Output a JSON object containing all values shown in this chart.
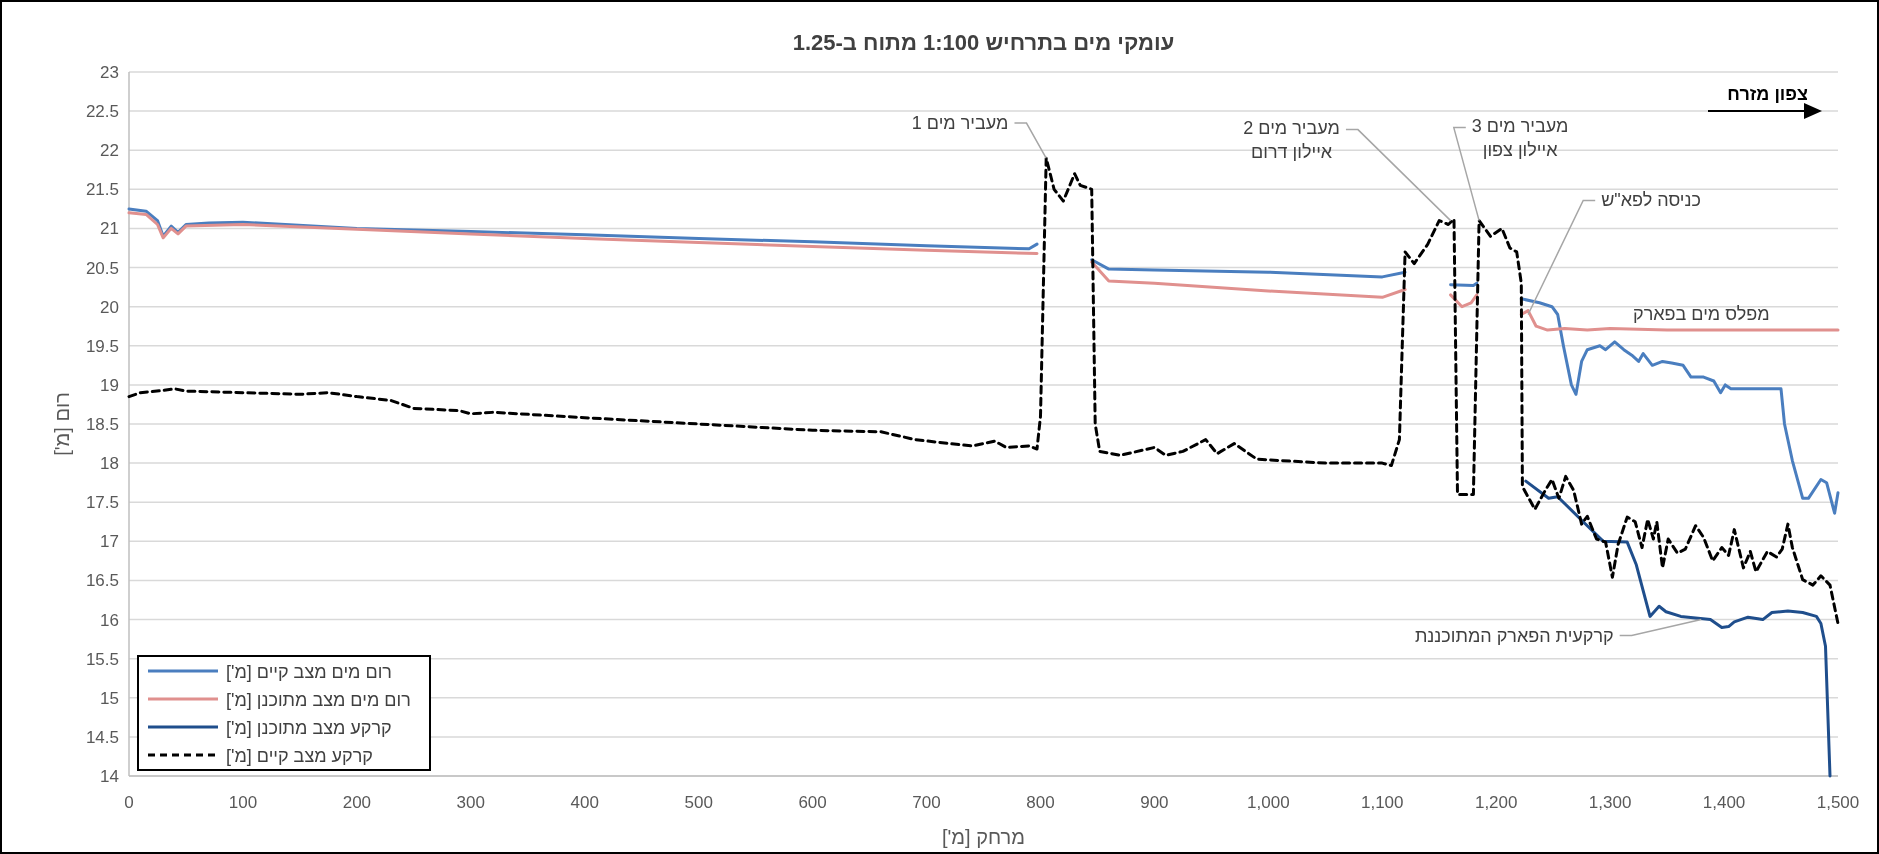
{
  "chart_data": {
    "type": "line",
    "title": "עומקי מים בתרחיש 1:100 מתוח ב-1.25",
    "xlabel": "מרחק [מ']",
    "ylabel": "רום [מ']",
    "xlim": [
      0,
      1500
    ],
    "ylim": [
      14,
      23
    ],
    "xticks": [
      0,
      100,
      200,
      300,
      400,
      500,
      600,
      700,
      800,
      900,
      {
        "value": 1000,
        "label": "1,000"
      },
      {
        "value": 1100,
        "label": "1,100"
      },
      {
        "value": 1200,
        "label": "1,200"
      },
      {
        "value": 1300,
        "label": "1,300"
      },
      {
        "value": 1400,
        "label": "1,400"
      },
      {
        "value": 1500,
        "label": "1,500"
      }
    ],
    "yticks": [
      14,
      14.5,
      15,
      15.5,
      16,
      16.5,
      17,
      17.5,
      18,
      18.5,
      19,
      19.5,
      20,
      20.5,
      21,
      21.5,
      22,
      22.5,
      23
    ],
    "grid": "y",
    "legend": "bottom left",
    "marker": "none",
    "series": [
      {
        "name": "רום מים מצב קיים [מ']",
        "color": "#4a7ebf",
        "line_style": "solid",
        "x": [
          0,
          15,
          25,
          30,
          37,
          43,
          50,
          70,
          100,
          200,
          300,
          400,
          500,
          600,
          700,
          790,
          797,
          820,
          845,
          860,
          900,
          1000,
          1100,
          1120,
          1140,
          1160,
          1180,
          1183,
          1200,
          1222,
          1238,
          1249,
          1254,
          1259,
          1266,
          1270,
          1275,
          1280,
          1291,
          1296,
          1304,
          1312,
          1319,
          1325,
          1329,
          1337,
          1346,
          1354,
          1364,
          1371,
          1382,
          1391,
          1397,
          1401,
          1406,
          1427,
          1450,
          1453,
          1460,
          1469,
          1474,
          1485,
          1490,
          1497,
          1500
        ],
        "values": [
          21.25,
          21.22,
          21.1,
          20.9,
          21.03,
          20.95,
          21.05,
          21.07,
          21.08,
          21.0,
          20.96,
          20.92,
          20.87,
          20.83,
          20.78,
          20.74,
          20.8,
          null,
          20.6,
          20.48,
          20.47,
          20.44,
          20.38,
          20.44,
          null,
          20.28,
          20.27,
          20.3,
          null,
          20.1,
          20.05,
          20.0,
          19.9,
          19.5,
          19.0,
          18.88,
          19.3,
          19.45,
          19.5,
          19.45,
          19.55,
          19.45,
          19.38,
          19.3,
          19.4,
          19.25,
          19.3,
          19.28,
          19.25,
          19.1,
          19.1,
          19.05,
          18.9,
          19.0,
          18.95,
          18.95,
          18.95,
          18.5,
          18.03,
          17.55,
          17.55,
          17.79,
          17.75,
          17.36,
          17.62
        ]
      },
      {
        "name": "רום מים מצב מתוכנן [מ']",
        "color": "#e0908e",
        "line_style": "solid",
        "x": [
          0,
          15,
          25,
          30,
          37,
          43,
          50,
          100,
          200,
          300,
          400,
          500,
          600,
          700,
          797,
          820,
          845,
          860,
          900,
          1000,
          1100,
          1120,
          1140,
          1160,
          1170,
          1178,
          1183,
          1200,
          1222,
          1228,
          1235,
          1245,
          1260,
          1280,
          1300,
          1350,
          1500
        ],
        "values": [
          21.2,
          21.18,
          21.05,
          20.88,
          21.0,
          20.93,
          21.03,
          21.05,
          20.99,
          20.93,
          20.87,
          20.82,
          20.77,
          20.72,
          20.68,
          null,
          20.57,
          20.33,
          20.3,
          20.2,
          20.12,
          20.22,
          null,
          20.15,
          20.0,
          20.05,
          20.15,
          null,
          19.9,
          19.95,
          19.75,
          19.7,
          19.72,
          19.7,
          19.72,
          19.7,
          19.7
        ]
      },
      {
        "name": "קרקע מצב מתוכנן [מ']",
        "color": "#1f4e8c",
        "line_style": "solid",
        "x": [
          1226,
          1246,
          1254,
          1275,
          1294,
          1315,
          1323,
          1335,
          1343,
          1349,
          1362,
          1388,
          1398,
          1404,
          1409,
          1421,
          1434,
          1442,
          1456,
          1469,
          1481,
          1485,
          1489,
          1493
        ],
        "values": [
          17.77,
          17.55,
          17.57,
          17.27,
          17.0,
          16.99,
          16.7,
          16.04,
          16.17,
          16.1,
          16.04,
          16.0,
          15.9,
          15.91,
          15.97,
          16.03,
          16.0,
          16.09,
          16.11,
          16.09,
          16.04,
          15.95,
          15.66,
          14.0
        ]
      },
      {
        "name": "קרקע מצב קיים [מ']",
        "color": "#000000",
        "line_style": "dashed",
        "x": [
          0,
          10,
          30,
          40,
          50,
          100,
          150,
          175,
          200,
          230,
          250,
          290,
          300,
          320,
          400,
          500,
          600,
          660,
          690,
          720,
          740,
          760,
          770,
          790,
          797,
          800,
          805,
          812,
          820,
          830,
          835,
          845,
          848,
          852,
          870,
          900,
          910,
          925,
          945,
          955,
          970,
          990,
          1050,
          1100,
          1108,
          1115,
          1120,
          1128,
          1140,
          1150,
          1158,
          1163,
          1166,
          1180,
          1185,
          1195,
          1205,
          1212,
          1218,
          1222,
          1223,
          1234,
          1243,
          1249,
          1255,
          1261,
          1268,
          1275,
          1280,
          1288,
          1296,
          1302,
          1307,
          1315,
          1322,
          1328,
          1333,
          1338,
          1341,
          1346,
          1351,
          1359,
          1366,
          1375,
          1382,
          1390,
          1398,
          1404,
          1409,
          1417,
          1423,
          1428,
          1438,
          1446,
          1451,
          1456,
          1460,
          1469,
          1478,
          1485,
          1493,
          1500
        ],
        "values": [
          18.85,
          18.9,
          18.93,
          18.95,
          18.92,
          18.9,
          18.88,
          18.9,
          18.85,
          18.8,
          18.7,
          18.67,
          18.63,
          18.65,
          18.58,
          18.5,
          18.42,
          18.4,
          18.3,
          18.25,
          18.22,
          18.28,
          18.2,
          18.22,
          18.18,
          18.6,
          21.9,
          21.5,
          21.35,
          21.7,
          21.55,
          21.5,
          18.5,
          18.15,
          18.1,
          18.2,
          18.1,
          18.15,
          18.3,
          18.12,
          18.25,
          18.05,
          18.0,
          18.0,
          17.97,
          18.3,
          20.7,
          20.55,
          20.8,
          21.1,
          21.05,
          21.12,
          17.6,
          17.6,
          21.1,
          20.9,
          21.0,
          20.75,
          20.7,
          20.3,
          17.7,
          17.41,
          17.65,
          17.79,
          17.55,
          17.83,
          17.65,
          17.22,
          17.32,
          17.03,
          16.99,
          16.54,
          16.96,
          17.31,
          17.25,
          16.92,
          17.28,
          17.03,
          17.25,
          16.66,
          17.03,
          16.85,
          16.9,
          17.2,
          17.05,
          16.75,
          16.92,
          16.82,
          17.15,
          16.66,
          16.87,
          16.61,
          16.87,
          16.8,
          16.9,
          17.22,
          16.92,
          16.51,
          16.44,
          16.56,
          16.44,
          15.95
        ]
      }
    ],
    "annotations": [
      {
        "text": "מעביר מים 1",
        "x": 805,
        "y": 21.9
      },
      {
        "text": "מעביר מים 2\nאיילון דרום",
        "x": 1160,
        "y": 21.1
      },
      {
        "text": "מעביר מים 3\nאיילון צפון",
        "x": 1185,
        "y": 21.1
      },
      {
        "text": "כניסה לפא\"ש",
        "x": 1228,
        "y": 19.9
      },
      {
        "text": "מפלס מים בפארק",
        "x": 1380,
        "y": 19.7
      },
      {
        "text": "קרקעית הפארק המתוכננת",
        "x": 1380,
        "y": 16.0
      },
      "צפון מזרח"
    ]
  }
}
